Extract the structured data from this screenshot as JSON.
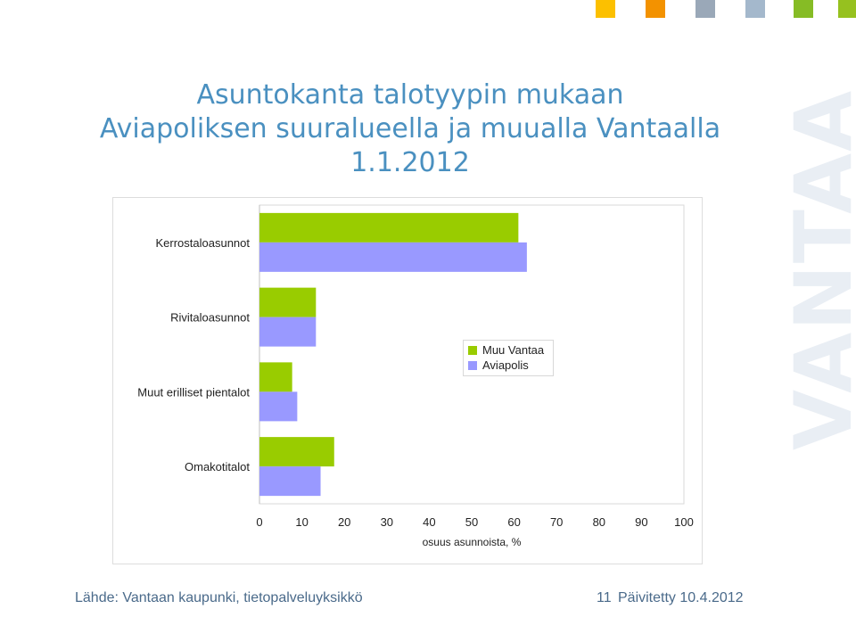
{
  "header": {
    "title_line1": "Asuntokanta talotyypin mukaan",
    "title_line2": "Aviapoliksen suuralueella ja muualla Vantaalla",
    "title_line3": "1.1.2012",
    "accent_colors": [
      "#fcc000",
      "#f39200",
      "#9aa8b8",
      "#a4b8cc",
      "#86bc25",
      "#96c11f"
    ]
  },
  "watermark": "VANTAA",
  "chart_data": {
    "type": "bar",
    "orientation": "horizontal",
    "categories": [
      "Kerrostaloasunnot",
      "Rivitaloasunnot",
      "Muut erilliset pientalot",
      "Omakotitalot"
    ],
    "series": [
      {
        "name": "Muu Vantaa",
        "color": "#99cc00",
        "values": [
          61,
          13.3,
          7.7,
          17.6
        ]
      },
      {
        "name": "Aviapolis",
        "color": "#9999ff",
        "values": [
          63,
          13.3,
          8.9,
          14.4
        ]
      }
    ],
    "xlim": [
      0,
      100
    ],
    "xticks": [
      0,
      10,
      20,
      30,
      40,
      50,
      60,
      70,
      80,
      90,
      100
    ],
    "xlabel": "osuus asunnoista, %",
    "ylabel": "",
    "grid": false,
    "legend_position": "middle-right"
  },
  "footer": {
    "source": "Lähde: Vantaan kaupunki, tietopalveluyksikkö",
    "page_number": "11",
    "updated": "Päivitetty 10.4.2012"
  }
}
